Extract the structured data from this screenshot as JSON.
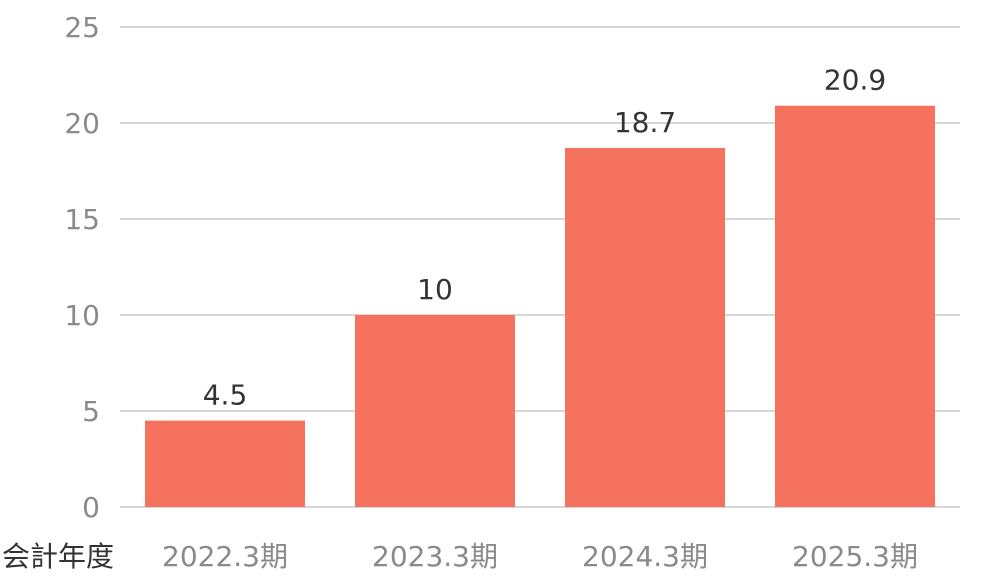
{
  "chart_data": {
    "type": "bar",
    "categories": [
      "2022.3期",
      "2023.3期",
      "2024.3期",
      "2025.3期"
    ],
    "values": [
      4.5,
      10,
      18.7,
      20.9
    ],
    "data_labels": [
      "4.5",
      "10",
      "18.7",
      "20.9"
    ],
    "title": "",
    "xlabel": "会計年度",
    "ylabel": "",
    "ylim": [
      0,
      25
    ],
    "yticks": [
      0,
      5,
      10,
      15,
      20,
      25
    ],
    "grid": true,
    "bar_color": "#f4725e"
  }
}
